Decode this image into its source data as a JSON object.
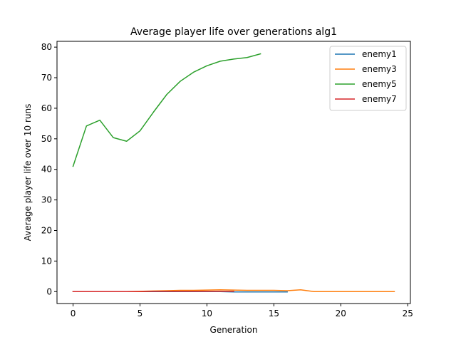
{
  "chart_data": {
    "type": "line",
    "title": "Average player life over generations alg1",
    "xlabel": "Generation",
    "ylabel": "Average player life over 10 runs",
    "xlim": [
      -1.2,
      25.2
    ],
    "ylim": [
      -3.9,
      81.9
    ],
    "xticks": [
      0,
      5,
      10,
      15,
      20,
      25
    ],
    "yticks": [
      0,
      10,
      20,
      30,
      40,
      50,
      60,
      70,
      80
    ],
    "grid": false,
    "legend_position": "top-right",
    "series": [
      {
        "name": "enemy1",
        "color": "#1f77b4",
        "x": [
          0,
          1,
          2,
          3,
          4,
          5,
          6,
          7,
          8,
          9,
          10,
          11,
          12,
          13,
          14,
          15,
          16
        ],
        "y": [
          0,
          0,
          0,
          0,
          0,
          0,
          0,
          0,
          0,
          0,
          0,
          0,
          -0.1,
          -0.1,
          -0.1,
          -0.1,
          -0.1
        ]
      },
      {
        "name": "enemy3",
        "color": "#ff7f0e",
        "x": [
          0,
          1,
          2,
          3,
          4,
          5,
          6,
          7,
          8,
          9,
          10,
          11,
          12,
          13,
          14,
          15,
          16,
          17,
          18,
          19,
          20,
          21,
          22,
          23,
          24
        ],
        "y": [
          0,
          0,
          0,
          0,
          0,
          0.1,
          0.2,
          0.3,
          0.4,
          0.4,
          0.5,
          0.6,
          0.5,
          0.4,
          0.4,
          0.4,
          0.3,
          0.6,
          0,
          0,
          0,
          0,
          0,
          0,
          0
        ]
      },
      {
        "name": "enemy5",
        "color": "#2ca02c",
        "x": [
          0,
          1,
          2,
          3,
          4,
          5,
          6,
          7,
          8,
          9,
          10,
          11,
          12,
          13,
          14
        ],
        "y": [
          41,
          54.2,
          56.1,
          50.4,
          49.2,
          52.6,
          58.7,
          64.5,
          68.8,
          71.8,
          73.9,
          75.4,
          76.1,
          76.6,
          77.8
        ]
      },
      {
        "name": "enemy7",
        "color": "#d62728",
        "x": [
          0,
          1,
          2,
          3,
          4,
          5,
          6,
          7,
          8,
          9,
          10,
          11,
          12
        ],
        "y": [
          0,
          0,
          0,
          0,
          0,
          0,
          0.1,
          0.1,
          0.1,
          0.1,
          0.1,
          0.1,
          0.1
        ]
      }
    ]
  }
}
